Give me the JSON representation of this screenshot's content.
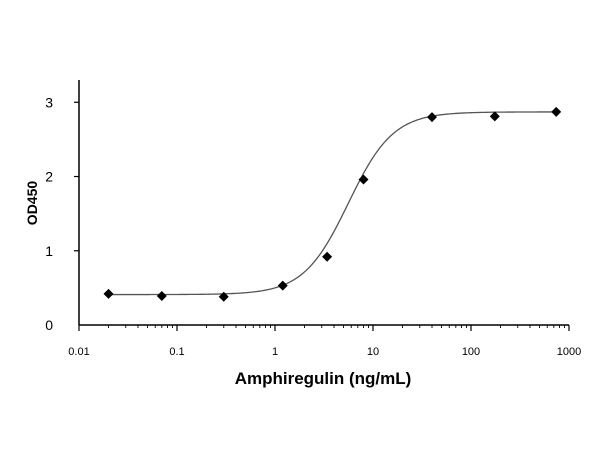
{
  "chart_data": {
    "type": "scatter",
    "title": "",
    "xlabel": "Amphiregulin (ng/mL)",
    "ylabel": "OD450",
    "xscale": "log",
    "xlim": [
      0.01,
      1000
    ],
    "ylim": [
      0,
      3.3
    ],
    "x_ticks": [
      "0.01",
      "0.1",
      "1",
      "10",
      "100",
      "1000"
    ],
    "y_ticks": [
      "0",
      "1",
      "2",
      "3"
    ],
    "grid": false,
    "legend": "none",
    "series": [
      {
        "points": [
          {
            "x": 0.02,
            "y": 0.42
          },
          {
            "x": 0.07,
            "y": 0.39
          },
          {
            "x": 0.3,
            "y": 0.38
          },
          {
            "x": 1.2,
            "y": 0.53
          },
          {
            "x": 3.4,
            "y": 0.92
          },
          {
            "x": 8.0,
            "y": 1.96
          },
          {
            "x": 40,
            "y": 2.8
          },
          {
            "x": 175,
            "y": 2.81
          },
          {
            "x": 740,
            "y": 2.87
          }
        ]
      }
    ],
    "fit": {
      "type": "4PL",
      "bottom": 0.41,
      "top": 2.87,
      "ec50": 5.6,
      "hill": 1.9
    },
    "colors": {
      "marker": "#000000",
      "curve": "#555555",
      "axis": "#000000"
    }
  }
}
